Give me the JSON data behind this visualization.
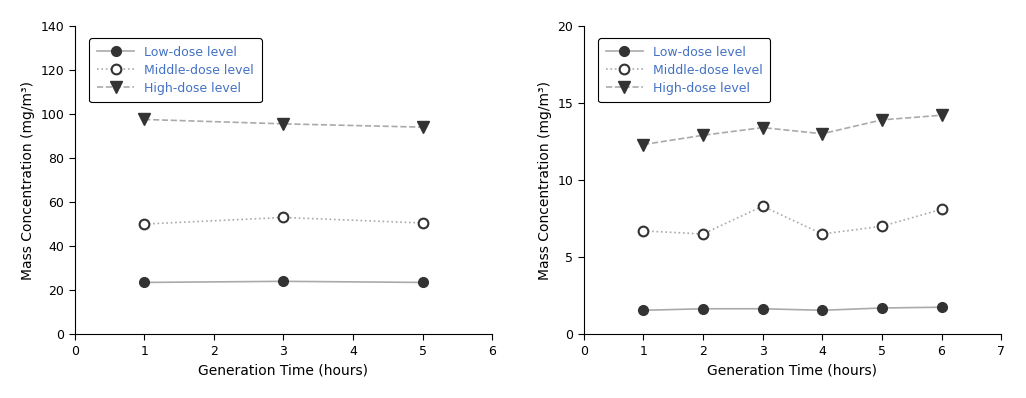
{
  "left_chart": {
    "x": [
      1,
      3,
      5
    ],
    "low_dose": [
      23.5,
      24.0,
      23.5
    ],
    "mid_dose": [
      50.0,
      53.0,
      50.5
    ],
    "high_dose": [
      97.5,
      95.5,
      94.0
    ],
    "xlabel": "Generation Time (hours)",
    "ylabel": "Mass Concentration (mg/m³)",
    "xlim": [
      0,
      6
    ],
    "ylim": [
      0,
      140
    ],
    "xticks": [
      0,
      1,
      2,
      3,
      4,
      5,
      6
    ],
    "yticks": [
      0,
      20,
      40,
      60,
      80,
      100,
      120,
      140
    ]
  },
  "right_chart": {
    "x": [
      1,
      2,
      3,
      4,
      5,
      6
    ],
    "low_dose": [
      1.55,
      1.65,
      1.65,
      1.55,
      1.7,
      1.75
    ],
    "mid_dose": [
      6.7,
      6.5,
      8.3,
      6.5,
      7.0,
      8.1
    ],
    "high_dose": [
      12.3,
      12.9,
      13.4,
      13.0,
      13.9,
      14.2
    ],
    "xlabel": "Generation Time (hours)",
    "ylabel": "Mass Concentration (mg/m³)",
    "xlim": [
      0,
      7
    ],
    "ylim": [
      0,
      20
    ],
    "xticks": [
      0,
      1,
      2,
      3,
      4,
      5,
      6,
      7
    ],
    "yticks": [
      0,
      5,
      10,
      15,
      20
    ]
  },
  "legend_labels": [
    "Low-dose level",
    "Middle-dose level",
    "High-dose level"
  ],
  "line_color": "#333333",
  "line_color_light": "#aaaaaa",
  "label_color": "#4472C4",
  "font_size": 9,
  "axis_label_font_size": 10,
  "tick_font_size": 9,
  "marker_size": 7,
  "marker_size_tri": 8,
  "linewidth": 1.2
}
